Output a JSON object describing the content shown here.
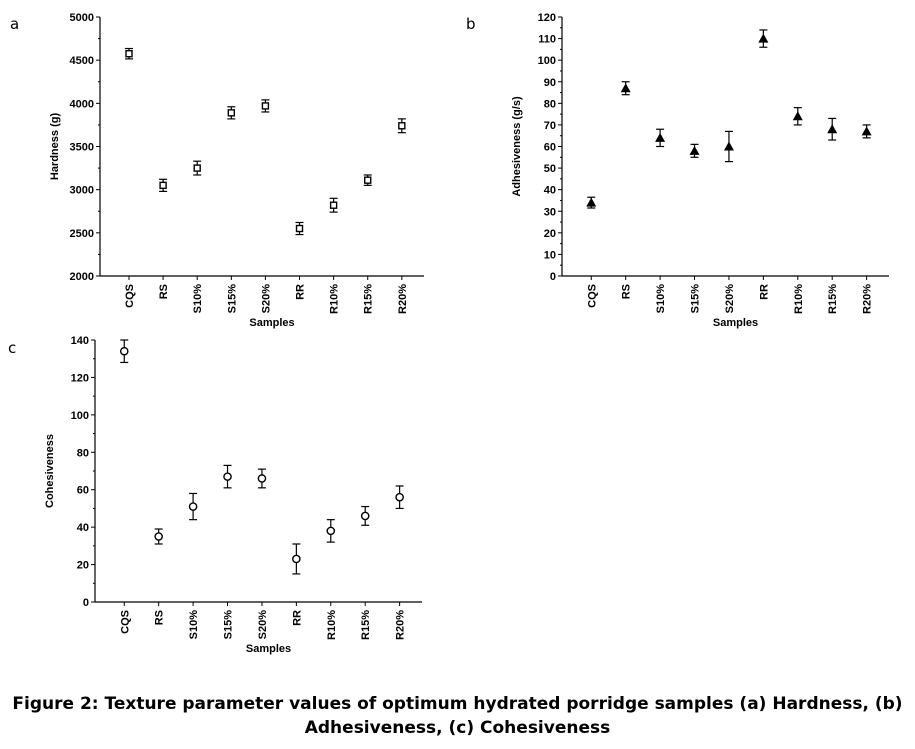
{
  "caption": {
    "line1": "Figure 2: Texture parameter values of optimum hydrated porridge samples (a) Hardness, (b)",
    "line2": "Adhesiveness, (c) Cohesiveness"
  },
  "chart_data": [
    {
      "panel": "a",
      "type": "scatter",
      "marker": "open-square",
      "xlabel": "Samples",
      "ylabel": "Hardness (g)",
      "categories": [
        "CQS",
        "RS",
        "S10%",
        "S15%",
        "S20%",
        "RR",
        "R10%",
        "R15%",
        "R20%"
      ],
      "values": [
        4575,
        3050,
        3250,
        3890,
        3970,
        2550,
        2820,
        3110,
        3740
      ],
      "errors": [
        60,
        70,
        80,
        70,
        70,
        70,
        80,
        60,
        80
      ],
      "ylim": [
        2000,
        5000
      ],
      "yticks": [
        2000,
        2500,
        3000,
        3500,
        4000,
        4500,
        5000
      ],
      "grid": false
    },
    {
      "panel": "b",
      "type": "scatter",
      "marker": "filled-triangle",
      "xlabel": "Samples",
      "ylabel": "Adhesiveness (g/s)",
      "categories": [
        "CQS",
        "RS",
        "S10%",
        "S15%",
        "S20%",
        "RR",
        "R10%",
        "R15%",
        "R20%"
      ],
      "values": [
        34,
        87,
        64,
        58,
        60,
        110,
        74,
        68,
        67
      ],
      "errors": [
        2.5,
        3,
        4,
        3,
        7,
        4,
        4,
        5,
        3
      ],
      "ylim": [
        0,
        120
      ],
      "yticks": [
        0,
        10,
        20,
        30,
        40,
        50,
        60,
        70,
        80,
        90,
        100,
        110,
        120
      ],
      "grid": false
    },
    {
      "panel": "c",
      "type": "scatter",
      "marker": "open-circle",
      "xlabel": "Samples",
      "ylabel": "Cohesiveness",
      "categories": [
        "CQS",
        "RS",
        "S10%",
        "S15%",
        "S20%",
        "RR",
        "R10%",
        "R15%",
        "R20%"
      ],
      "values": [
        134,
        35,
        51,
        67,
        66,
        23,
        38,
        46,
        56
      ],
      "errors": [
        6,
        4,
        7,
        6,
        5,
        8,
        6,
        5,
        6
      ],
      "ylim": [
        0,
        140
      ],
      "yticks": [
        0,
        20,
        40,
        60,
        80,
        100,
        120,
        140
      ],
      "grid": false
    }
  ]
}
